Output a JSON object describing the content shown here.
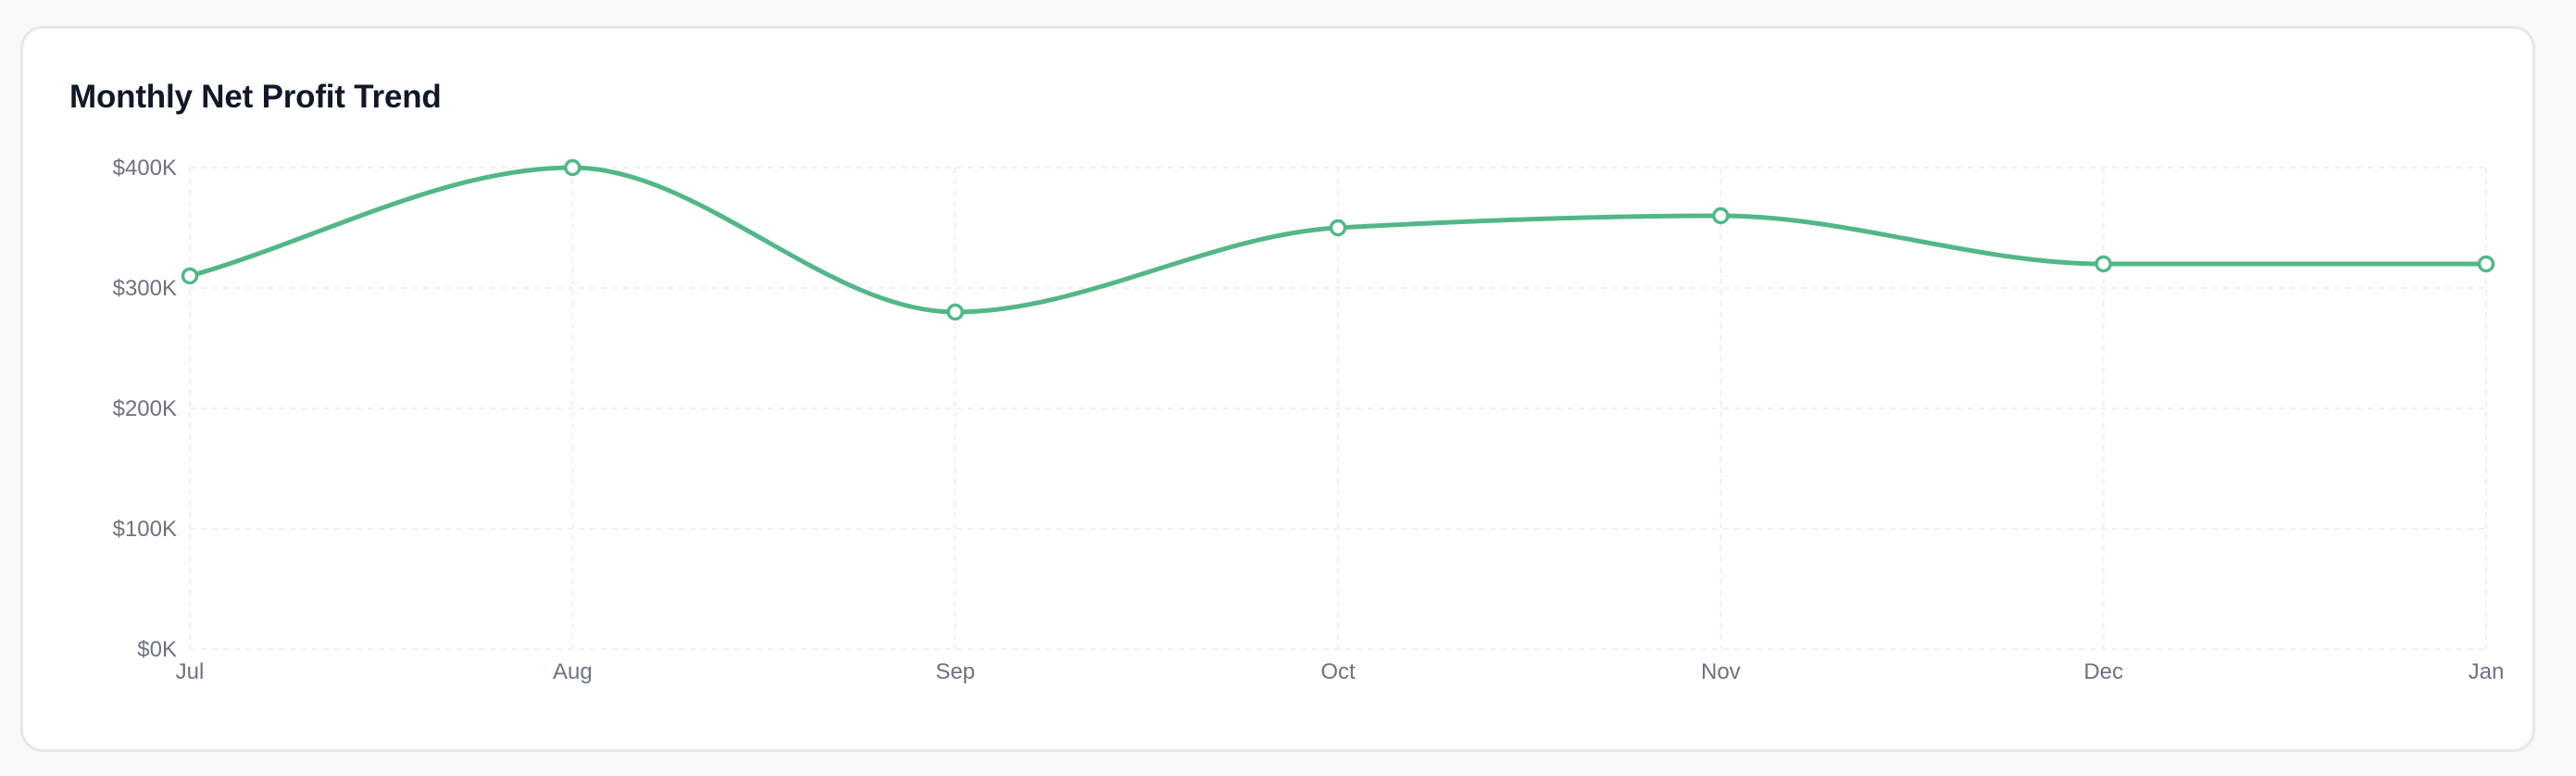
{
  "chart_data": {
    "type": "line",
    "title": "Monthly Net Profit Trend",
    "xlabel": "",
    "ylabel": "",
    "categories": [
      "Jul",
      "Aug",
      "Sep",
      "Oct",
      "Nov",
      "Dec",
      "Jan"
    ],
    "series": [
      {
        "values": [
          310000,
          400000,
          280000,
          350000,
          360000,
          320000,
          320000
        ],
        "color": "#52b788"
      }
    ],
    "ylim": [
      0,
      400000
    ],
    "yticks": [
      0,
      100000,
      200000,
      300000,
      400000
    ],
    "ytick_labels": [
      "$0K",
      "$100K",
      "$200K",
      "$300K",
      "$400K"
    ],
    "grid": true,
    "grid_style": "dashed",
    "legend": "none",
    "curve": "smooth",
    "colors": {
      "line": "#52b788",
      "grid": "#eef0f3",
      "tick_text": "#6b7280",
      "title": "#111827"
    }
  }
}
